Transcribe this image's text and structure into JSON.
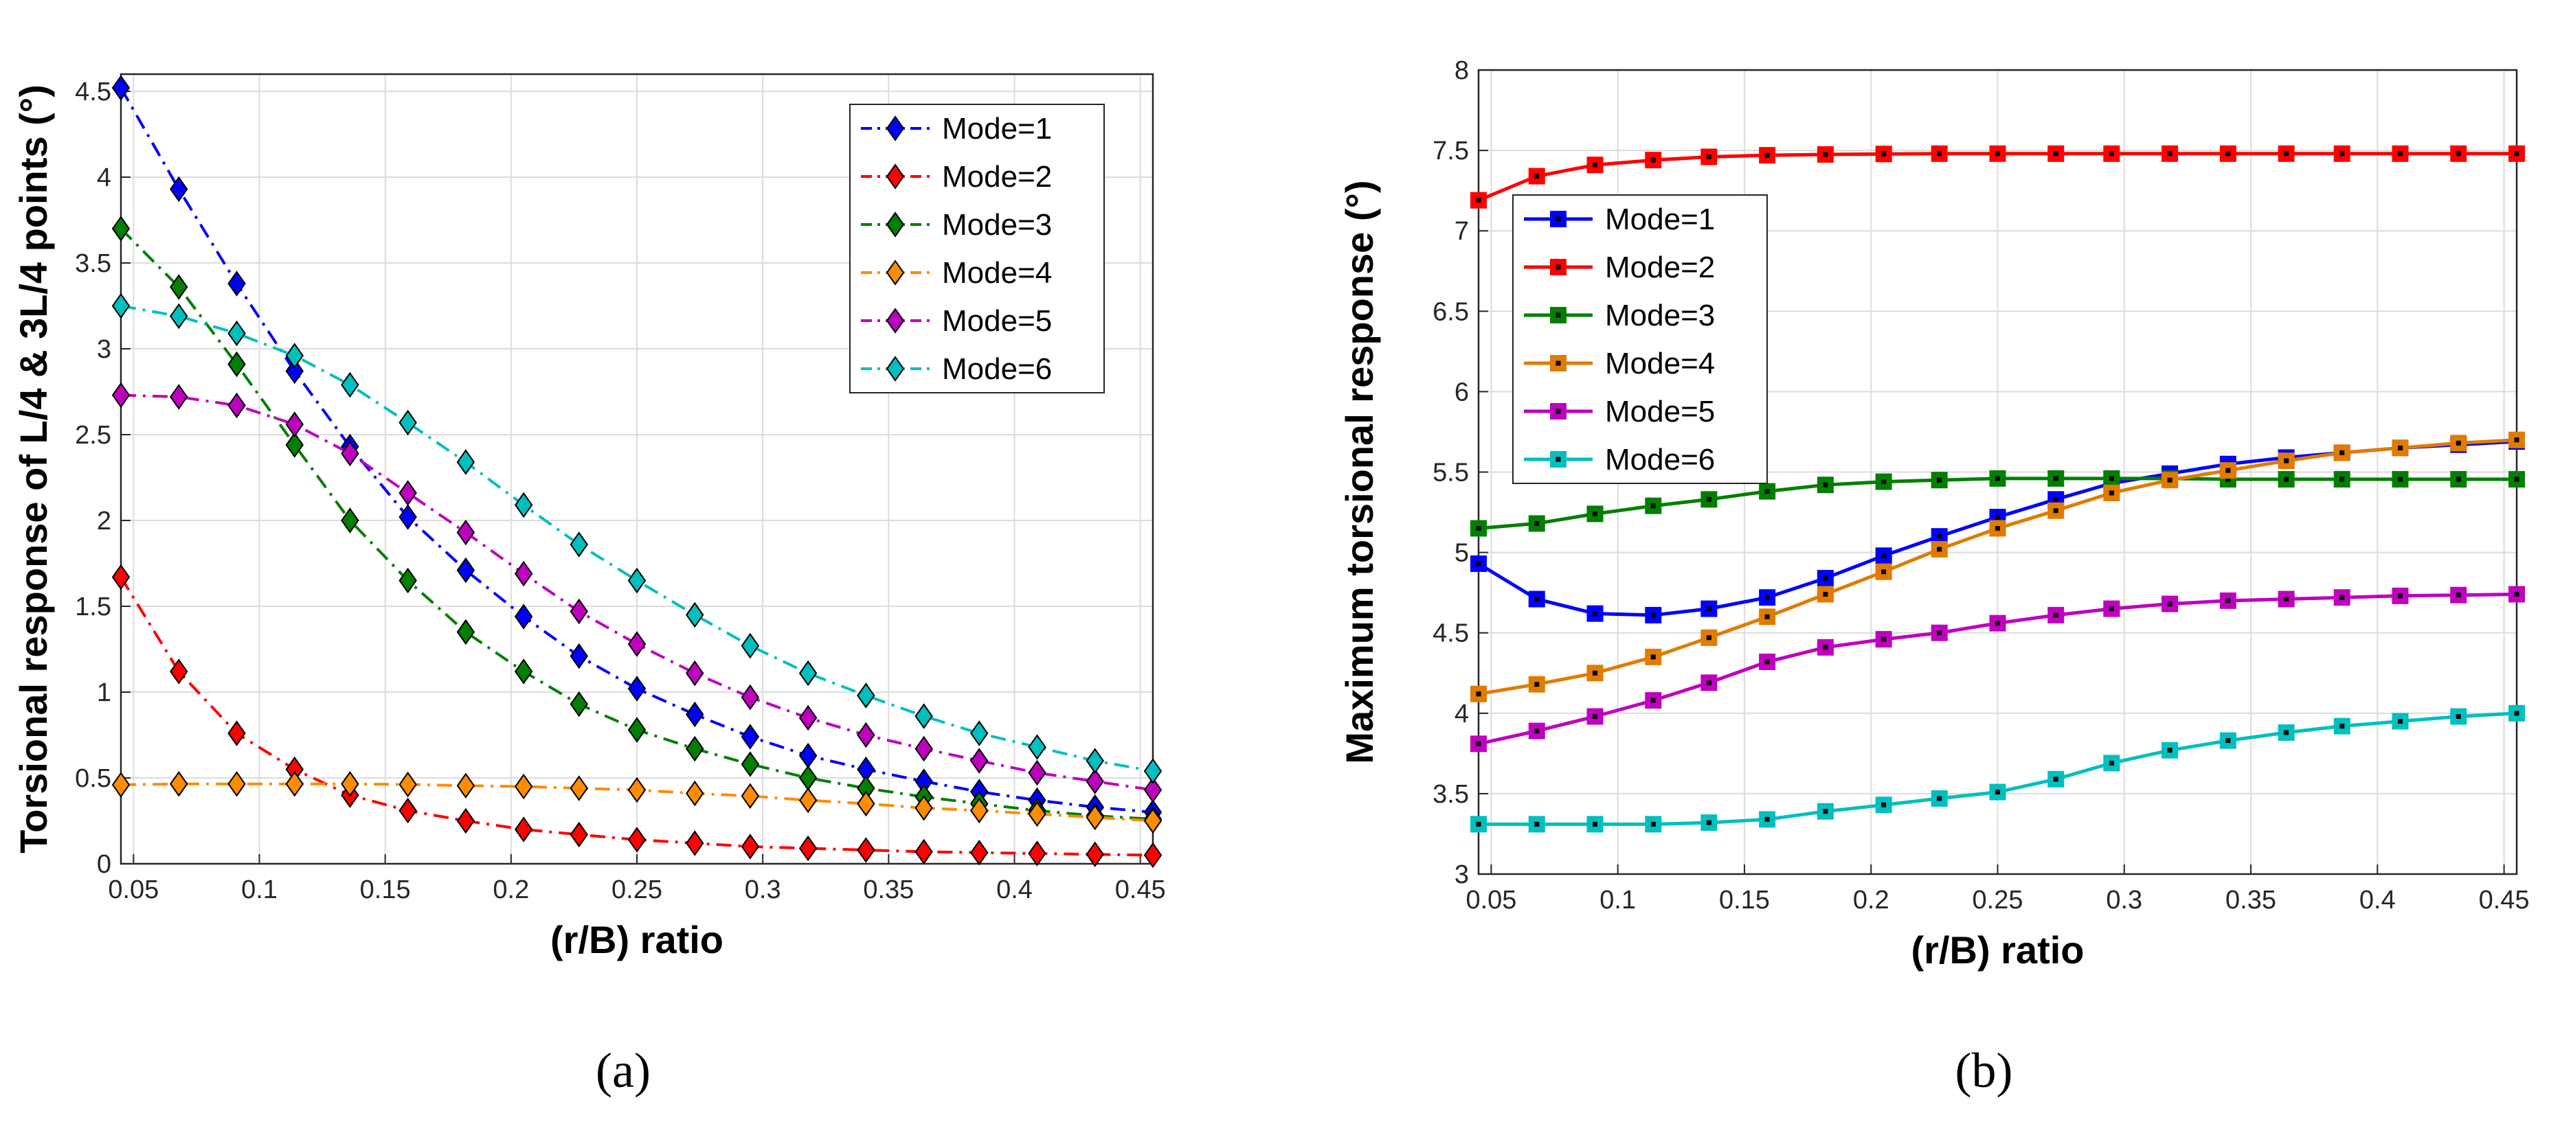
{
  "chart_data": [
    {
      "type": "line",
      "panel": "(a)",
      "xlabel": "(r/B) ratio",
      "ylabel": "Torsional response of L/4 & 3L/4 points (°)",
      "xlim": [
        0.045,
        0.455
      ],
      "ylim": [
        0,
        4.6
      ],
      "xticks": [
        "0.05",
        "0.1",
        "0.15",
        "0.2",
        "0.25",
        "0.3",
        "0.35",
        "0.4",
        "0.45"
      ],
      "xtick_values": [
        0.05,
        0.1,
        0.15,
        0.2,
        0.25,
        0.3,
        0.35,
        0.4,
        0.45
      ],
      "yticks": [
        "0",
        "0.5",
        "1",
        "1.5",
        "2",
        "2.5",
        "3",
        "3.5",
        "4",
        "4.5"
      ],
      "ytick_values": [
        0,
        0.5,
        1,
        1.5,
        2,
        2.5,
        3,
        3.5,
        4,
        4.5
      ],
      "grid": true,
      "legend_position": "top-right",
      "line_style": "dash-dot",
      "marker": "diamond",
      "x": [
        0.045,
        0.068,
        0.091,
        0.114,
        0.136,
        0.159,
        0.182,
        0.205,
        0.227,
        0.25,
        0.273,
        0.295,
        0.318,
        0.341,
        0.364,
        0.386,
        0.409,
        0.432,
        0.455
      ],
      "series": [
        {
          "name": "Mode=1",
          "color": "#0000ff",
          "values": [
            4.52,
            3.93,
            3.38,
            2.87,
            2.43,
            2.02,
            1.71,
            1.44,
            1.21,
            1.02,
            0.87,
            0.74,
            0.63,
            0.55,
            0.48,
            0.42,
            0.37,
            0.33,
            0.3
          ]
        },
        {
          "name": "Mode=2",
          "color": "#ff0000",
          "values": [
            1.67,
            1.12,
            0.76,
            0.55,
            0.4,
            0.31,
            0.25,
            0.2,
            0.17,
            0.14,
            0.12,
            0.1,
            0.09,
            0.08,
            0.07,
            0.065,
            0.06,
            0.055,
            0.05
          ]
        },
        {
          "name": "Mode=3",
          "color": "#007f00",
          "values": [
            3.7,
            3.36,
            2.91,
            2.44,
            2.0,
            1.65,
            1.35,
            1.12,
            0.93,
            0.78,
            0.67,
            0.58,
            0.5,
            0.44,
            0.39,
            0.35,
            0.31,
            0.28,
            0.26
          ]
        },
        {
          "name": "Mode=4",
          "color": "#ff8c00",
          "values": [
            0.46,
            0.465,
            0.465,
            0.465,
            0.465,
            0.462,
            0.455,
            0.45,
            0.44,
            0.43,
            0.41,
            0.395,
            0.37,
            0.35,
            0.325,
            0.31,
            0.29,
            0.27,
            0.25
          ]
        },
        {
          "name": "Mode=5",
          "color": "#bf00bf",
          "values": [
            2.73,
            2.72,
            2.67,
            2.56,
            2.39,
            2.16,
            1.93,
            1.69,
            1.47,
            1.28,
            1.11,
            0.97,
            0.85,
            0.75,
            0.67,
            0.6,
            0.53,
            0.48,
            0.43
          ]
        },
        {
          "name": "Mode=6",
          "color": "#00bfbf",
          "values": [
            3.25,
            3.19,
            3.09,
            2.96,
            2.79,
            2.57,
            2.34,
            2.09,
            1.86,
            1.65,
            1.45,
            1.27,
            1.11,
            0.98,
            0.86,
            0.76,
            0.68,
            0.6,
            0.54
          ]
        }
      ],
      "caption": "(a)"
    },
    {
      "type": "line",
      "panel": "(b)",
      "xlabel": "(r/B) ratio",
      "ylabel": "Maximum torsional response (°)",
      "xlim": [
        0.045,
        0.455
      ],
      "ylim": [
        3,
        8
      ],
      "xticks": [
        "0.05",
        "0.1",
        "0.15",
        "0.2",
        "0.25",
        "0.3",
        "0.35",
        "0.4",
        "0.45"
      ],
      "xtick_values": [
        0.05,
        0.1,
        0.15,
        0.2,
        0.25,
        0.3,
        0.35,
        0.4,
        0.45
      ],
      "yticks": [
        "3",
        "3.5",
        "4",
        "4.5",
        "5",
        "5.5",
        "6",
        "6.5",
        "7",
        "7.5",
        "8"
      ],
      "ytick_values": [
        3,
        3.5,
        4,
        4.5,
        5,
        5.5,
        6,
        6.5,
        7,
        7.5,
        8
      ],
      "grid": true,
      "legend_position": "upper-left",
      "line_style": "solid",
      "marker": "square",
      "x": [
        0.045,
        0.068,
        0.091,
        0.114,
        0.136,
        0.159,
        0.182,
        0.205,
        0.227,
        0.25,
        0.273,
        0.295,
        0.318,
        0.341,
        0.364,
        0.386,
        0.409,
        0.432,
        0.455
      ],
      "series": [
        {
          "name": "Mode=1",
          "color": "#0000ff",
          "values": [
            4.93,
            4.71,
            4.62,
            4.61,
            4.65,
            4.72,
            4.84,
            4.98,
            5.1,
            5.22,
            5.33,
            5.43,
            5.49,
            5.55,
            5.59,
            5.62,
            5.65,
            5.67,
            5.69
          ]
        },
        {
          "name": "Mode=2",
          "color": "#ff0000",
          "values": [
            7.19,
            7.34,
            7.41,
            7.44,
            7.46,
            7.47,
            7.475,
            7.478,
            7.48,
            7.48,
            7.48,
            7.48,
            7.48,
            7.48,
            7.48,
            7.48,
            7.48,
            7.48,
            7.48
          ]
        },
        {
          "name": "Mode=3",
          "color": "#007f00",
          "values": [
            5.15,
            5.18,
            5.24,
            5.29,
            5.33,
            5.38,
            5.42,
            5.44,
            5.45,
            5.46,
            5.46,
            5.46,
            5.46,
            5.455,
            5.455,
            5.455,
            5.455,
            5.455,
            5.455
          ]
        },
        {
          "name": "Mode=4",
          "color": "#e07b00",
          "values": [
            4.12,
            4.18,
            4.25,
            4.35,
            4.47,
            4.6,
            4.74,
            4.88,
            5.02,
            5.15,
            5.26,
            5.37,
            5.45,
            5.51,
            5.57,
            5.62,
            5.65,
            5.68,
            5.7
          ]
        },
        {
          "name": "Mode=5",
          "color": "#bf00bf",
          "values": [
            3.81,
            3.89,
            3.98,
            4.08,
            4.19,
            4.32,
            4.41,
            4.46,
            4.5,
            4.56,
            4.61,
            4.65,
            4.68,
            4.7,
            4.71,
            4.72,
            4.73,
            4.735,
            4.74
          ]
        },
        {
          "name": "Mode=6",
          "color": "#00bfbf",
          "values": [
            3.31,
            3.31,
            3.31,
            3.31,
            3.32,
            3.34,
            3.39,
            3.43,
            3.47,
            3.51,
            3.59,
            3.69,
            3.77,
            3.83,
            3.88,
            3.92,
            3.95,
            3.98,
            4.0
          ]
        }
      ],
      "caption": "(b)"
    }
  ]
}
